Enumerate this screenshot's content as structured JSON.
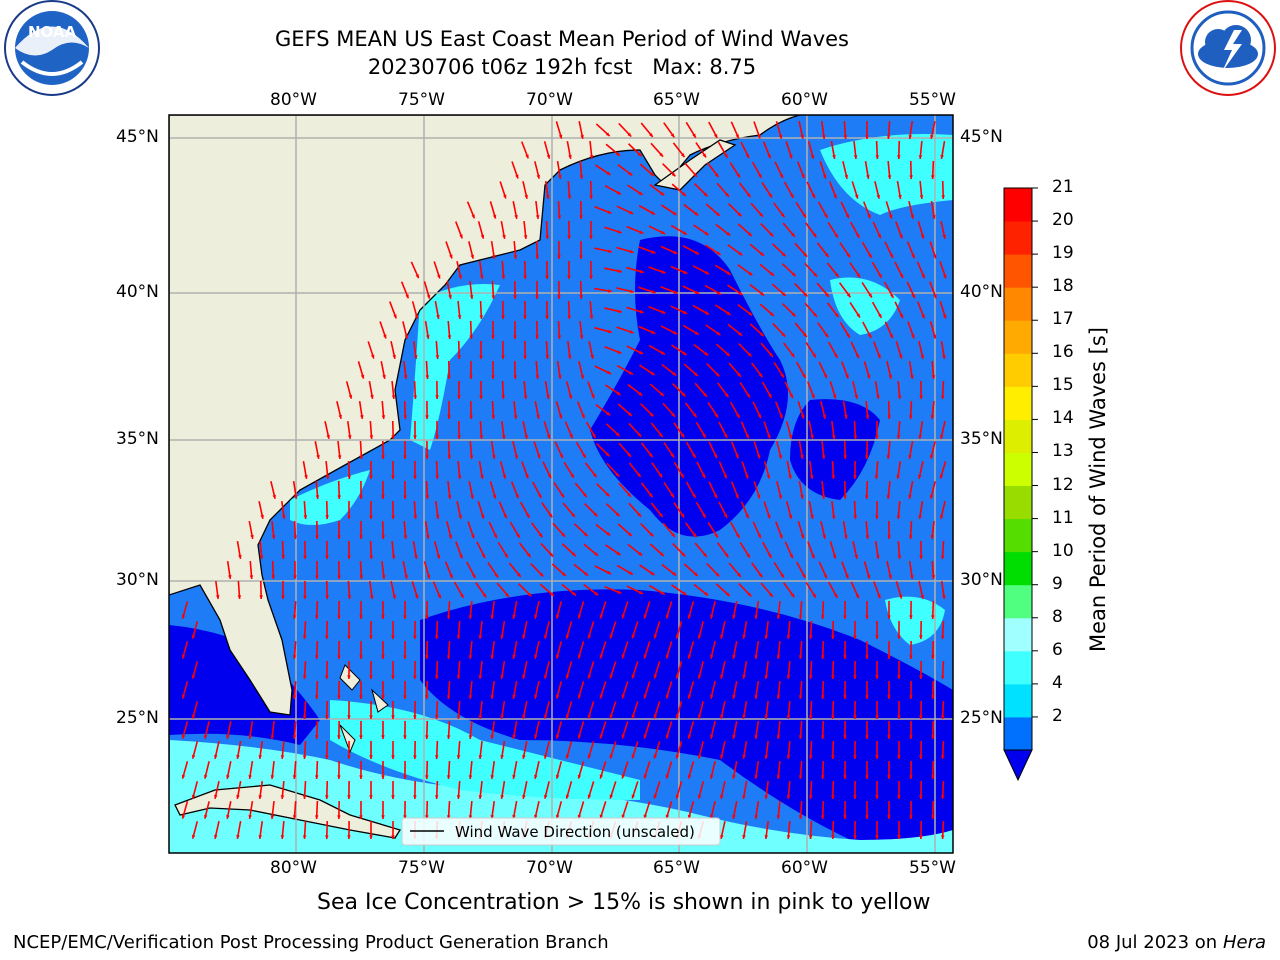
{
  "header": {
    "title_line1": "GEFS MEAN US East Coast Mean Period of Wind Waves",
    "title_line2": "20230706 t06z 192h fcst   Max: 8.75"
  },
  "logos": {
    "left": {
      "icon": "noaa-logo",
      "text": "NOAA",
      "ring": "NATIONAL OCEANIC AND ATMOSPHERIC ADMINISTRATION · U.S. DEPARTMENT OF COMMERCE"
    },
    "right": {
      "icon": "nws-logo",
      "ring": "NATIONAL WEATHER SERVICE"
    }
  },
  "map": {
    "lon_labels": [
      "80°W",
      "75°W",
      "70°W",
      "65°W",
      "60°W",
      "55°W"
    ],
    "lat_labels": [
      "45°N",
      "40°N",
      "35°N",
      "30°N",
      "25°N"
    ],
    "legend": "Wind Wave Direction (unscaled)",
    "colors": {
      "land": "#eeeedc",
      "deep_blue": "#0000ee",
      "mid_blue": "#1e7cf6",
      "cyan": "#00ffff",
      "light_cyan": "#6fffff",
      "arrow": "#ff0000",
      "grid": "#b0b0b0"
    }
  },
  "colorbar": {
    "label": "Mean Period of Wind Waves [s]",
    "ticks": [
      "21",
      "20",
      "19",
      "18",
      "17",
      "16",
      "15",
      "14",
      "13",
      "12",
      "11",
      "10",
      "9",
      "8",
      "6",
      "4",
      "2"
    ],
    "colors_bottom_to_top": [
      "#0070ff",
      "#00e0ff",
      "#40ffff",
      "#a0ffff",
      "#50ff80",
      "#00dd00",
      "#55dd00",
      "#99dd00",
      "#ccff00",
      "#ddee00",
      "#ffee00",
      "#ffcc00",
      "#ffaa00",
      "#ff8800",
      "#ff5500",
      "#ff2200",
      "#ff0000"
    ],
    "extend_color": "#0000ee"
  },
  "notes": {
    "sea_ice": "Sea Ice Concentration > 15% is shown in pink to yellow"
  },
  "footer": {
    "left": "NCEP/EMC/Verification Post Processing Product Generation Branch",
    "date": "08 Jul 2023 on ",
    "host": "Hera"
  }
}
